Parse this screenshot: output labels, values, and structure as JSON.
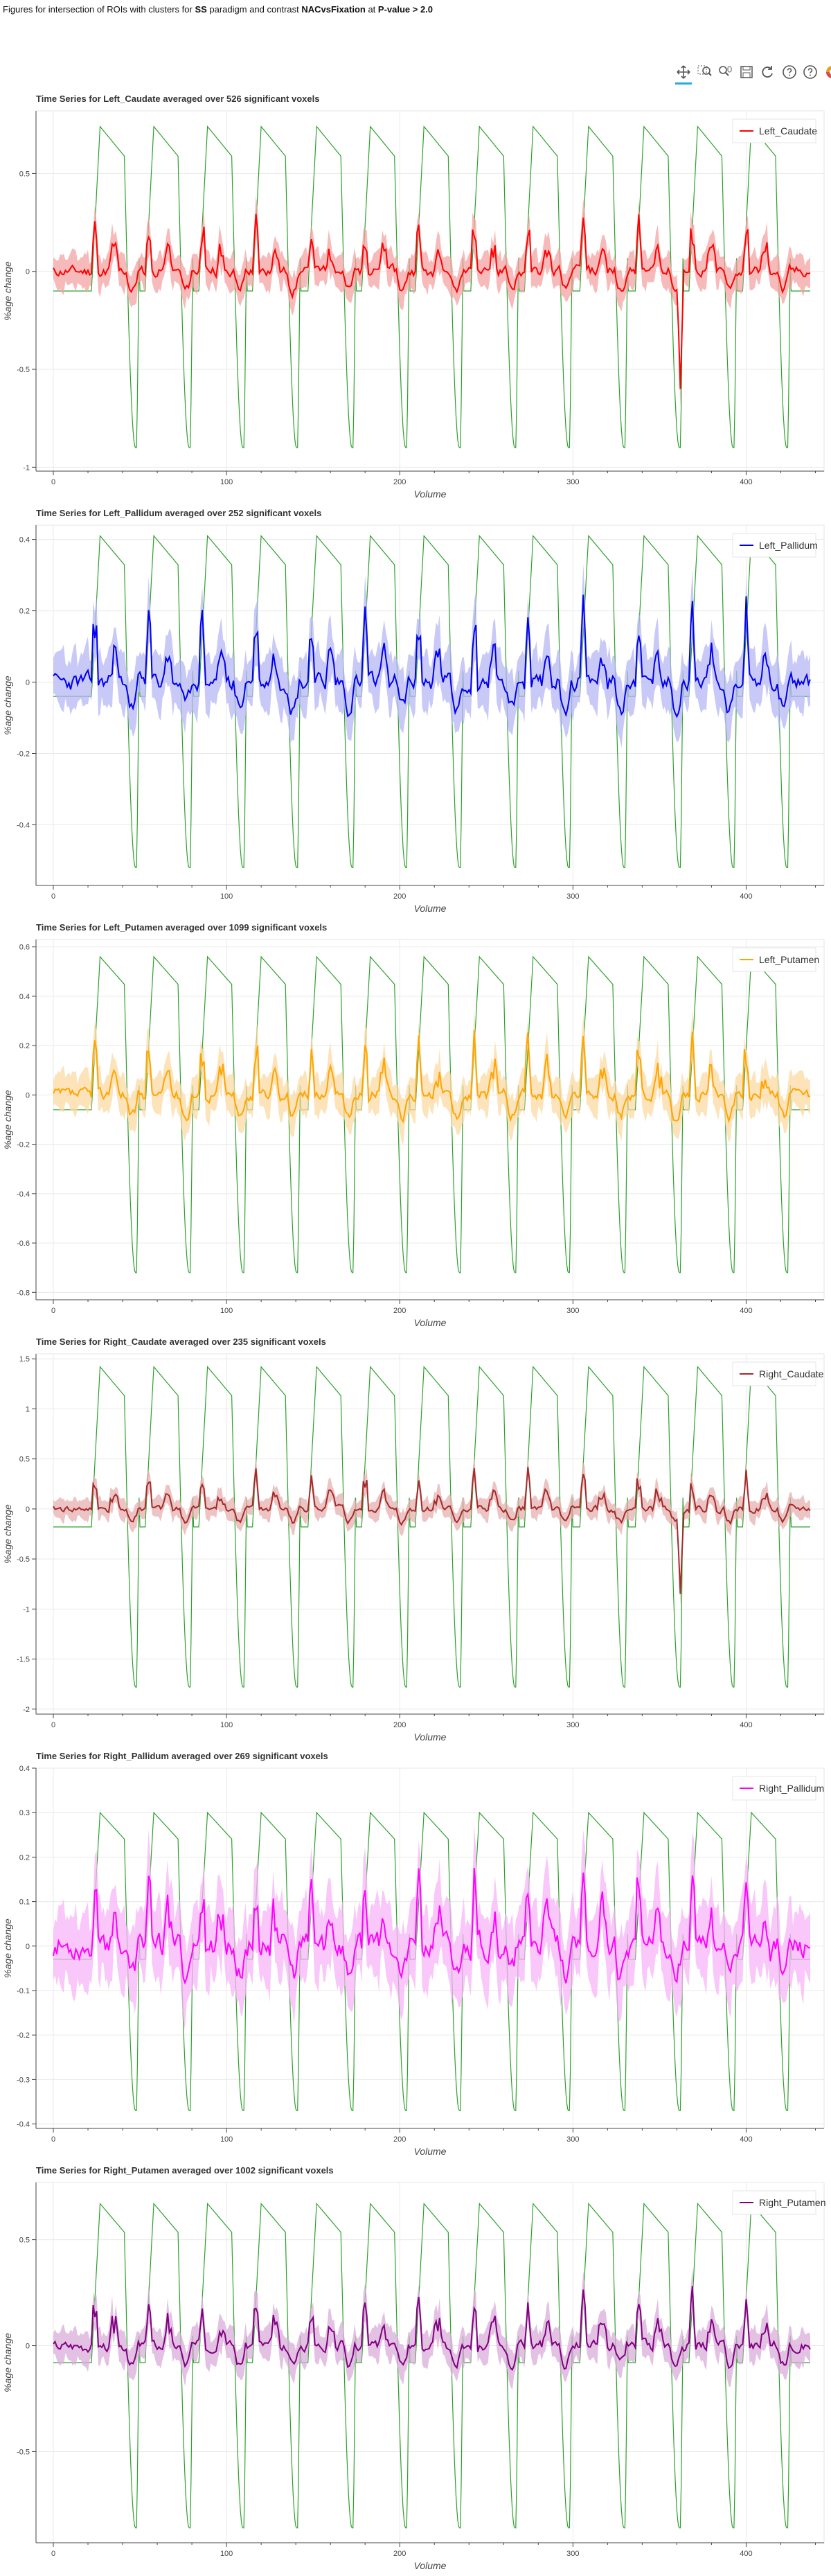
{
  "page": {
    "title_parts": [
      {
        "text": "Figures for intersection of ROIs with clusters for ",
        "bold": false
      },
      {
        "text": "SS",
        "bold": true
      },
      {
        "text": " paradigm and contrast ",
        "bold": false
      },
      {
        "text": "NACvsFixation",
        "bold": true
      },
      {
        "text": " at ",
        "bold": false
      },
      {
        "text": "P-value > 2.0",
        "bold": true
      }
    ]
  },
  "toolbar": {
    "tools": [
      {
        "icon": "pan-icon",
        "active": true
      },
      {
        "icon": "box-zoom-icon",
        "active": false
      },
      {
        "icon": "wheel-zoom-icon",
        "active": false
      },
      {
        "icon": "save-icon",
        "active": false
      },
      {
        "icon": "reset-icon",
        "active": false
      },
      {
        "icon": "help-icon",
        "active": false
      },
      {
        "icon": "help-icon",
        "active": false
      },
      {
        "icon": "bokeh-logo-icon",
        "active": false
      }
    ]
  },
  "regressor_color": "#2ca02c",
  "chart_data": [
    {
      "type": "line",
      "title": "Time Series for Left_Caudate averaged over 526 significant voxels",
      "xlabel": "Volume",
      "ylabel": "%age change",
      "xlim": [
        -10,
        445
      ],
      "ylim": [
        -1.02,
        0.82
      ],
      "xticks": [
        0,
        100,
        200,
        300,
        400
      ],
      "yticks": [
        -1,
        -0.5,
        0,
        0.5
      ],
      "yticklabels": [
        "-1",
        "-0.5",
        "0",
        "0.5"
      ],
      "legend": "top-right",
      "grid": true,
      "series": [
        {
          "name": "Left_Caudate",
          "color": "#ff0000",
          "band": "#f4a3a3",
          "amp": 0.11,
          "spike": 0.22,
          "noise": 0.05,
          "seed": 11,
          "dip": [
            362,
            -0.6
          ]
        }
      ],
      "regressor": {
        "color": "#2ca02c",
        "peak": 0.74,
        "trough": -0.9,
        "rest": -0.1
      }
    },
    {
      "type": "line",
      "title": "Time Series for Left_Pallidum averaged over 252 significant voxels",
      "xlabel": "Volume",
      "ylabel": "%age change",
      "xlim": [
        -10,
        445
      ],
      "ylim": [
        -0.57,
        0.44
      ],
      "xticks": [
        0,
        100,
        200,
        300,
        400
      ],
      "yticks": [
        -0.4,
        -0.2,
        0,
        0.2,
        0.4
      ],
      "yticklabels": [
        "-0.4",
        "-0.2",
        "0",
        "0.2",
        "0.4"
      ],
      "legend": "top-right",
      "grid": true,
      "series": [
        {
          "name": "Left_Pallidum",
          "color": "#0000ee",
          "band": "#b7b7f5",
          "amp": 0.08,
          "spike": 0.18,
          "noise": 0.045,
          "seed": 23
        }
      ],
      "regressor": {
        "color": "#2ca02c",
        "peak": 0.41,
        "trough": -0.52,
        "rest": -0.04
      }
    },
    {
      "type": "line",
      "title": "Time Series for Left_Putamen averaged over 1099 significant voxels",
      "xlabel": "Volume",
      "ylabel": "%age change",
      "xlim": [
        -10,
        445
      ],
      "ylim": [
        -0.83,
        0.63
      ],
      "xticks": [
        0,
        100,
        200,
        300,
        400
      ],
      "yticks": [
        -0.8,
        -0.6,
        -0.4,
        -0.2,
        0,
        0.2,
        0.4,
        0.6
      ],
      "yticklabels": [
        "-0.8",
        "-0.6",
        "-0.4",
        "-0.2",
        "0",
        "0.2",
        "0.4",
        "0.6"
      ],
      "legend": "top-right",
      "grid": true,
      "series": [
        {
          "name": "Left_Putamen",
          "color": "#ffa500",
          "band": "#fbd9a3",
          "amp": 0.1,
          "spike": 0.2,
          "noise": 0.045,
          "seed": 37
        }
      ],
      "regressor": {
        "color": "#2ca02c",
        "peak": 0.56,
        "trough": -0.72,
        "rest": -0.06
      }
    },
    {
      "type": "line",
      "title": "Time Series for Right_Caudate averaged over 235 significant voxels",
      "xlabel": "Volume",
      "ylabel": "%age change",
      "xlim": [
        -10,
        445
      ],
      "ylim": [
        -2.05,
        1.55
      ],
      "xticks": [
        0,
        100,
        200,
        300,
        400
      ],
      "yticks": [
        -2,
        -1.5,
        -1,
        -0.5,
        0,
        0.5,
        1,
        1.5
      ],
      "yticklabels": [
        "-2",
        "-1.5",
        "-1",
        "-0.5",
        "0",
        "0.5",
        "1",
        "1.5"
      ],
      "legend": "top-right",
      "grid": true,
      "series": [
        {
          "name": "Right_Caudate",
          "color": "#a52a2a",
          "band": "#e6b0b0",
          "amp": 0.14,
          "spike": 0.3,
          "noise": 0.06,
          "seed": 41,
          "dip": [
            362,
            -0.85
          ]
        }
      ],
      "regressor": {
        "color": "#2ca02c",
        "peak": 1.42,
        "trough": -1.78,
        "rest": -0.18
      }
    },
    {
      "type": "line",
      "title": "Time Series for Right_Pallidum averaged over 269 significant voxels",
      "xlabel": "Volume",
      "ylabel": "%age change",
      "xlim": [
        -10,
        445
      ],
      "ylim": [
        -0.41,
        0.4
      ],
      "xticks": [
        0,
        100,
        200,
        300,
        400
      ],
      "yticks": [
        -0.4,
        -0.3,
        -0.2,
        -0.1,
        0,
        0.1,
        0.2,
        0.3,
        0.4
      ],
      "yticklabels": [
        "-0.4",
        "-0.3",
        "-0.2",
        "-0.1",
        "0",
        "0.1",
        "0.2",
        "0.3",
        "0.4"
      ],
      "legend": "top-right",
      "grid": true,
      "series": [
        {
          "name": "Right_Pallidum",
          "color": "#ff00ff",
          "band": "#f7b4f7",
          "amp": 0.07,
          "spike": 0.13,
          "noise": 0.05,
          "seed": 53
        }
      ],
      "regressor": {
        "color": "#2ca02c",
        "peak": 0.3,
        "trough": -0.37,
        "rest": -0.03
      }
    },
    {
      "type": "line",
      "title": "Time Series for Right_Putamen averaged over 1002 significant voxels",
      "xlabel": "Volume",
      "ylabel": "%age change",
      "xlim": [
        -10,
        445
      ],
      "ylim": [
        -0.93,
        0.77
      ],
      "xticks": [
        0,
        100,
        200,
        300,
        400
      ],
      "yticks": [
        -0.5,
        0,
        0.5
      ],
      "yticklabels": [
        "-0.5",
        "0",
        "0.5"
      ],
      "legend": "top-right",
      "grid": true,
      "series": [
        {
          "name": "Right_Putamen",
          "color": "#800080",
          "band": "#d9acd9",
          "amp": 0.1,
          "spike": 0.2,
          "noise": 0.045,
          "seed": 67
        }
      ],
      "regressor": {
        "color": "#2ca02c",
        "peak": 0.67,
        "trough": -0.86,
        "rest": -0.08
      }
    }
  ]
}
